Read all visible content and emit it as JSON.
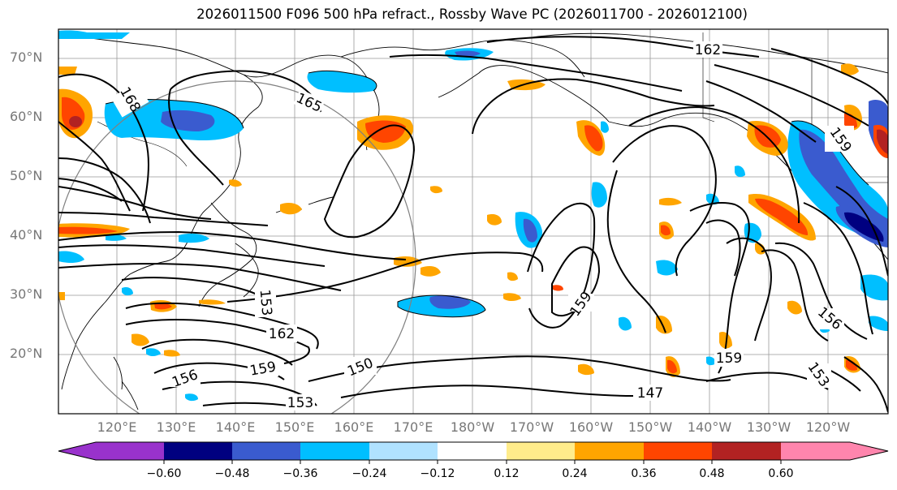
{
  "title": "2026011500 F096 500 hPa refract., Rossby Wave PC (2026011700 - 2026012100)",
  "lat_labels": [
    "70°N",
    "60°N",
    "50°N",
    "40°N",
    "30°N",
    "20°N"
  ],
  "lon_labels": [
    "120°E",
    "130°E",
    "140°E",
    "150°E",
    "160°E",
    "170°E",
    "180°W",
    "170°W",
    "160°W",
    "150°W",
    "140°W",
    "130°W",
    "120°W"
  ],
  "contour_labels": [
    "168",
    "165",
    "162",
    "162",
    "159",
    "159",
    "159",
    "159",
    "156",
    "156",
    "153",
    "153",
    "153",
    "150",
    "147"
  ],
  "colorbar": {
    "ticks": [
      "−0.60",
      "−0.48",
      "−0.36",
      "−0.24",
      "−0.12",
      "0.12",
      "0.24",
      "0.36",
      "0.48",
      "0.60"
    ],
    "colors": [
      "#9932cc",
      "#000080",
      "#3a5bcf",
      "#00bfff",
      "#b0e2ff",
      "#ffffff",
      "#ffec8b",
      "#ffa500",
      "#ff4500",
      "#b22222",
      "#ff85ad",
      "#ff85ad"
    ]
  }
}
